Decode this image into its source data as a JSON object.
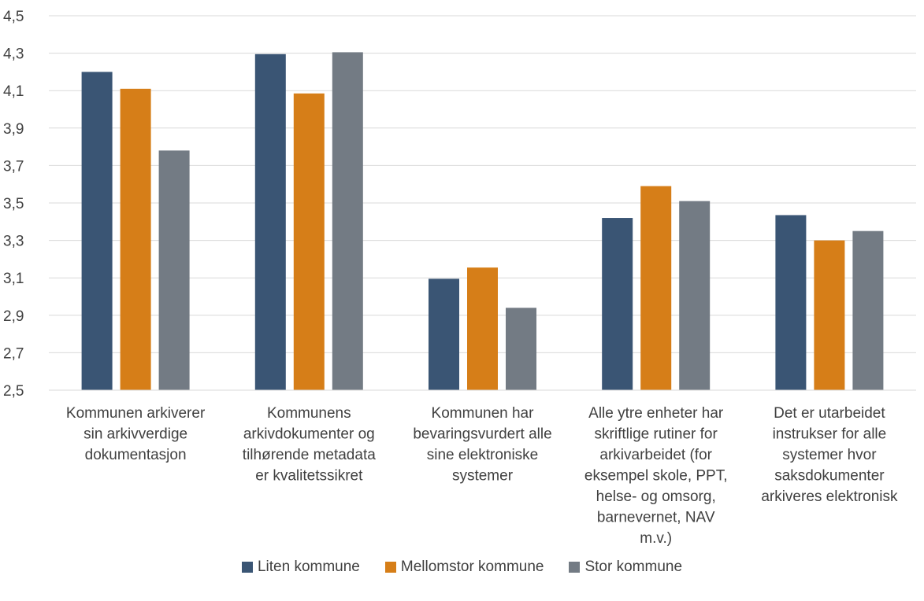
{
  "chart_data": {
    "type": "bar",
    "categories": [
      [
        "Kommunen arkiverer",
        "sin arkivverdige",
        "dokumentasjon"
      ],
      [
        "Kommunens",
        "arkivdokumenter og",
        "tilhørende metadata",
        "er kvalitetssikret"
      ],
      [
        "Kommunen har",
        "bevaringsvurdert alle",
        "sine elektroniske",
        "systemer"
      ],
      [
        "Alle ytre enheter har",
        "skriftlige rutiner for",
        "arkivarbeidet (for",
        "eksempel skole, PPT,",
        "helse- og omsorg,",
        "barnevernet, NAV",
        "m.v.)"
      ],
      [
        "Det er utarbeidet",
        "instrukser for alle",
        "systemer hvor",
        "saksdokumenter",
        "arkiveres elektronisk"
      ]
    ],
    "series": [
      {
        "name": "Liten kommune",
        "color": "#3a5574",
        "values": [
          4.2,
          4.295,
          3.095,
          3.42,
          3.435
        ]
      },
      {
        "name": "Mellomstor kommune",
        "color": "#d67e18",
        "values": [
          4.11,
          4.085,
          3.155,
          3.59,
          3.3
        ]
      },
      {
        "name": "Stor kommune",
        "color": "#737b84",
        "values": [
          3.78,
          4.305,
          2.94,
          3.51,
          3.35
        ]
      }
    ],
    "ylim": [
      2.5,
      4.5
    ],
    "yticks": [
      "2,5",
      "2,7",
      "2,9",
      "3,1",
      "3,3",
      "3,5",
      "3,7",
      "3,9",
      "4,1",
      "4,3",
      "4,5"
    ],
    "title": "",
    "xlabel": "",
    "ylabel": "",
    "grid": true,
    "legend_position": "bottom",
    "gridline_color": "#d9d9d9",
    "text_color": "#404040"
  }
}
